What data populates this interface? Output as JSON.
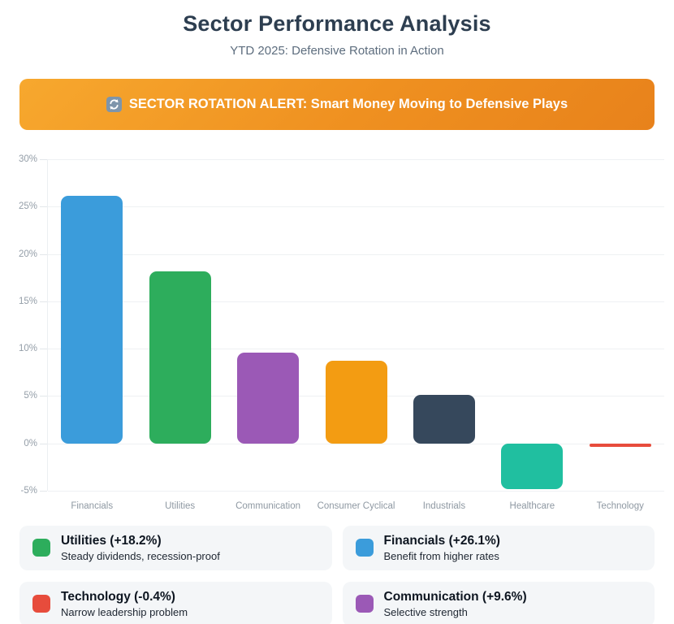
{
  "page": {
    "title": "Sector Performance Analysis",
    "subtitle": "YTD 2025: Defensive Rotation in Action"
  },
  "alert": {
    "icon": "rotation-arrows-icon",
    "text": "SECTOR ROTATION ALERT: Smart Money Moving to Defensive Plays",
    "gradient_start": "#f7a82e",
    "gradient_end": "#e8821b",
    "icon_bg": "#7e95ab"
  },
  "chart_data": {
    "type": "bar",
    "categories": [
      "Financials",
      "Utilities",
      "Communication",
      "Consumer Cyclical",
      "Industrials",
      "Healthcare",
      "Technology"
    ],
    "values": [
      26.1,
      18.2,
      9.6,
      8.7,
      5.1,
      -4.8,
      -0.4
    ],
    "bar_colors": [
      "#3b9cdb",
      "#2dad5c",
      "#9b59b6",
      "#f39c12",
      "#36485c",
      "#20bfa0",
      "#e74c3c"
    ],
    "title": "",
    "xlabel": "",
    "ylabel": "",
    "ylim": [
      -5,
      30
    ],
    "ytick_step": 5,
    "ytick_suffix": "%",
    "grid": true,
    "legend_position": "none"
  },
  "legend": {
    "items": [
      {
        "label": "Utilities (+18.2%)",
        "description": "Steady dividends, recession-proof",
        "color": "#2dad5c"
      },
      {
        "label": "Financials (+26.1%)",
        "description": "Benefit from higher rates",
        "color": "#3b9cdb"
      },
      {
        "label": "Technology (-0.4%)",
        "description": "Narrow leadership problem",
        "color": "#e74c3c"
      },
      {
        "label": "Communication (+9.6%)",
        "description": "Selective strength",
        "color": "#9b59b6"
      }
    ]
  },
  "colors": {
    "title_text": "#2d3e50",
    "subtitle_text": "#5d6d7e",
    "gridline": "#eef1f3",
    "axis_label": "#949ea8",
    "card_bg": "#f4f6f8"
  }
}
